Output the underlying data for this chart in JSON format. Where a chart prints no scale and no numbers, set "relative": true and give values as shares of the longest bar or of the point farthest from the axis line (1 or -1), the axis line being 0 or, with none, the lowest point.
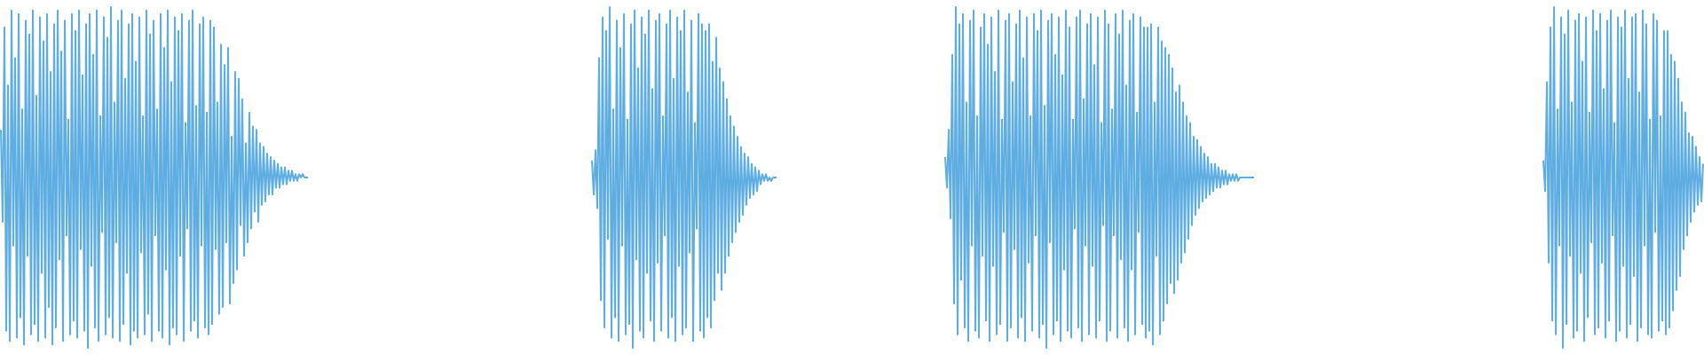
{
  "chart_data": [
    {
      "type": "line",
      "relative": true,
      "tick_labels": false,
      "color": "#5dade2",
      "categories": [
        null,
        null,
        null,
        null,
        null,
        null,
        null,
        null,
        null,
        null,
        null,
        null,
        null,
        null,
        null,
        null,
        null,
        null,
        null,
        null,
        null,
        null,
        null,
        null,
        null,
        null,
        null,
        null,
        null,
        null,
        null,
        null,
        null,
        null,
        null,
        null,
        null,
        null,
        null,
        null,
        null,
        null,
        null,
        null,
        null,
        null,
        null,
        null,
        null,
        null,
        null,
        null,
        null,
        null,
        null,
        null,
        null,
        null,
        null,
        null,
        null,
        null,
        null,
        null,
        null,
        null,
        null,
        null,
        null,
        null,
        null,
        null,
        null,
        null,
        null,
        null,
        null,
        null,
        null,
        null,
        null,
        null,
        null,
        null,
        null,
        null,
        null,
        null,
        null,
        null,
        null,
        null,
        null,
        null,
        null,
        null,
        null,
        null,
        null,
        null,
        null,
        null,
        null,
        null,
        null,
        null,
        null,
        null,
        null,
        null,
        null,
        null,
        null,
        null,
        null,
        null,
        null,
        null,
        null,
        null,
        null,
        null,
        null,
        null,
        null,
        null,
        null,
        null,
        null,
        null,
        null,
        null,
        null,
        null,
        null,
        null,
        null,
        null,
        null,
        null,
        null,
        null,
        null,
        null,
        null,
        null,
        null,
        null,
        null,
        null,
        null,
        null,
        null,
        null,
        null,
        null,
        null,
        null,
        null,
        null,
        null,
        null,
        null,
        null,
        null,
        null,
        null,
        null,
        null,
        null,
        null,
        null,
        null,
        null
      ],
      "values": [
        0.64,
        0.37,
        0.94,
        0.05,
        0.77,
        0.02,
        0.99,
        0.3,
        0.85,
        0.03,
        0.98,
        0.09,
        0.7,
        0.01,
        0.96,
        0.27,
        0.92,
        0.04,
        0.99,
        0.07,
        0.74,
        0.02,
        0.97,
        0.22,
        0.9,
        0.03,
        0.98,
        0.12,
        0.81,
        0.01,
        0.95,
        0.06,
        0.99,
        0.26,
        0.87,
        0.02,
        0.96,
        0.33,
        0.67,
        0.04,
        0.98,
        0.08,
        0.93,
        0.03,
        0.99,
        0.29,
        0.8,
        0.05,
        0.95,
        0,
        0.98,
        0.24,
        0.86,
        0.06,
        0.99,
        0.02,
        0.68,
        0.34,
        0.97,
        0.04,
        0.91,
        0.09,
        1,
        0.03,
        0.72,
        0.31,
        0.96,
        0.02,
        0.99,
        0.07,
        0.79,
        0.22,
        0.95,
        0.01,
        0.98,
        0.05,
        0.84,
        0.03,
        0.97,
        0.28,
        0.68,
        0.04,
        0.99,
        0.1,
        0.92,
        0.02,
        0.96,
        0.33,
        0.7,
        0.05,
        0.98,
        0.03,
        0.88,
        0.23,
        0.99,
        0.01,
        0.78,
        0.06,
        0.97,
        0.04,
        0.93,
        0.27,
        0.98,
        0.02,
        0.66,
        0.35,
        0.96,
        0.05,
        0.99,
        0.08,
        0.71,
        0.03,
        0.95,
        0.3,
        0.97,
        0.06,
        0.69,
        0.04,
        0.96,
        0.07,
        0.94,
        0.29,
        0.72,
        0.1,
        0.89,
        0.12,
        0.83,
        0.31,
        0.88,
        0.13,
        0.62,
        0.19,
        0.81,
        0.23,
        0.79,
        0.36,
        0.73,
        0.27,
        0.6,
        0.31,
        0.69,
        0.35,
        0.65,
        0.4,
        0.64,
        0.37,
        0.6,
        0.42,
        0.59,
        0.43,
        0.57,
        0.45,
        0.56,
        0.45,
        0.55,
        0.47,
        0.54,
        0.47,
        0.53,
        0.48,
        0.53,
        0.48,
        0.52,
        0.49,
        0.52,
        0.49,
        0.51,
        0.49,
        0.51,
        0.5,
        0.51,
        0.5,
        0.5,
        0.5
      ]
    },
    {
      "type": "line",
      "relative": true,
      "tick_labels": false,
      "color": "#5dade2",
      "categories": [
        null,
        null,
        null,
        null,
        null,
        null,
        null,
        null,
        null,
        null,
        null,
        null,
        null,
        null,
        null,
        null,
        null,
        null,
        null,
        null,
        null,
        null,
        null,
        null,
        null,
        null,
        null,
        null,
        null,
        null,
        null,
        null,
        null,
        null,
        null,
        null,
        null,
        null,
        null,
        null,
        null,
        null,
        null,
        null,
        null,
        null,
        null,
        null,
        null,
        null,
        null,
        null,
        null,
        null,
        null,
        null,
        null,
        null,
        null,
        null,
        null,
        null,
        null,
        null,
        null,
        null,
        null,
        null,
        null,
        null,
        null,
        null,
        null,
        null,
        null,
        null,
        null,
        null,
        null,
        null,
        null,
        null,
        null,
        null,
        null,
        null,
        null,
        null,
        null,
        null,
        null,
        null,
        null,
        null,
        null,
        null,
        null,
        null,
        null,
        null,
        null,
        null,
        null,
        null,
        null
      ],
      "values": [
        0.55,
        0.45,
        0.58,
        0.41,
        0.85,
        0.14,
        0.97,
        0.06,
        0.93,
        0.32,
        1,
        0.03,
        0.7,
        0.09,
        0.96,
        0.02,
        0.88,
        0.3,
        0.98,
        0.04,
        0.67,
        0.07,
        0.95,
        0,
        0.99,
        0.26,
        0.82,
        0.05,
        0.97,
        0.03,
        0.92,
        0.22,
        0.99,
        0.08,
        0.76,
        0.02,
        0.96,
        0.25,
        0.98,
        0.05,
        0.68,
        0.33,
        0.95,
        0.03,
        0.99,
        0.09,
        0.79,
        0.02,
        0.97,
        0.24,
        0.93,
        0.04,
        0.99,
        0.06,
        0.75,
        0.28,
        0.96,
        0.02,
        0.66,
        0.35,
        0.98,
        0.05,
        0.95,
        0.03,
        0.93,
        0.09,
        0.95,
        0.06,
        0.84,
        0.14,
        0.91,
        0.22,
        0.82,
        0.17,
        0.78,
        0.22,
        0.73,
        0.27,
        0.68,
        0.31,
        0.65,
        0.34,
        0.62,
        0.37,
        0.59,
        0.39,
        0.57,
        0.42,
        0.56,
        0.44,
        0.54,
        0.45,
        0.53,
        0.46,
        0.52,
        0.48,
        0.51,
        0.49,
        0.51,
        0.49,
        0.5,
        0.49,
        0.5,
        0.5,
        0.5
      ]
    },
    {
      "type": "line",
      "relative": true,
      "tick_labels": false,
      "color": "#5dade2",
      "categories": [
        null,
        null,
        null,
        null,
        null,
        null,
        null,
        null,
        null,
        null,
        null,
        null,
        null,
        null,
        null,
        null,
        null,
        null,
        null,
        null,
        null,
        null,
        null,
        null,
        null,
        null,
        null,
        null,
        null,
        null,
        null,
        null,
        null,
        null,
        null,
        null,
        null,
        null,
        null,
        null,
        null,
        null,
        null,
        null,
        null,
        null,
        null,
        null,
        null,
        null,
        null,
        null,
        null,
        null,
        null,
        null,
        null,
        null,
        null,
        null,
        null,
        null,
        null,
        null,
        null,
        null,
        null,
        null,
        null,
        null,
        null,
        null,
        null,
        null,
        null,
        null,
        null,
        null,
        null,
        null,
        null,
        null,
        null,
        null,
        null,
        null,
        null,
        null,
        null,
        null,
        null,
        null,
        null,
        null,
        null,
        null,
        null,
        null,
        null,
        null,
        null,
        null,
        null,
        null,
        null,
        null,
        null,
        null,
        null,
        null,
        null,
        null,
        null,
        null,
        null,
        null,
        null,
        null,
        null,
        null,
        null,
        null,
        null,
        null,
        null,
        null,
        null,
        null,
        null,
        null,
        null,
        null,
        null,
        null,
        null,
        null,
        null,
        null,
        null,
        null,
        null,
        null,
        null,
        null,
        null,
        null,
        null,
        null,
        null,
        null,
        null,
        null,
        null,
        null,
        null,
        null,
        null,
        null,
        null,
        null,
        null,
        null,
        null,
        null,
        null,
        null,
        null,
        null,
        null,
        null,
        null,
        null,
        null,
        null,
        null
      ],
      "values": [
        0.56,
        0.47,
        0.64,
        0.38,
        0.86,
        0.13,
        1,
        0.04,
        0.95,
        0.2,
        0.98,
        0.06,
        0.72,
        0.02,
        0.96,
        0.3,
        0.99,
        0.05,
        0.68,
        0.03,
        0.94,
        0.27,
        0.98,
        0.08,
        0.89,
        0.02,
        0.97,
        0.24,
        0.81,
        0.04,
        0.99,
        0.07,
        0.67,
        0.34,
        0.96,
        0.02,
        0.98,
        0.06,
        0.78,
        0.29,
        0.95,
        0.03,
        0.99,
        0.09,
        0.85,
        0.02,
        0.97,
        0.25,
        0.68,
        0.05,
        0.98,
        0.33,
        0.93,
        0.03,
        0.99,
        0.07,
        0.71,
        0,
        0.96,
        0.31,
        0.98,
        0.04,
        0.86,
        0.08,
        0.97,
        0.02,
        0.8,
        0.23,
        0.99,
        0.05,
        0.94,
        0.03,
        0.67,
        0.35,
        0.97,
        0.06,
        0.99,
        0.02,
        0.73,
        0.3,
        0.95,
        0.04,
        0.98,
        0.24,
        0.83,
        0.03,
        0.97,
        0.08,
        0.66,
        0.36,
        0.99,
        0.02,
        0.95,
        0.05,
        0.7,
        0.33,
        0.98,
        0.03,
        0.92,
        0.26,
        0.99,
        0.06,
        0.77,
        0.02,
        0.96,
        0.23,
        0.98,
        0.04,
        0.69,
        0.34,
        0.97,
        0.07,
        0.94,
        0.03,
        0.94,
        0.05,
        0.95,
        0.01,
        0.72,
        0.27,
        0.94,
        0.04,
        0.9,
        0.08,
        0.88,
        0.13,
        0.86,
        0.19,
        0.82,
        0.16,
        0.75,
        0.2,
        0.77,
        0.25,
        0.72,
        0.28,
        0.68,
        0.32,
        0.66,
        0.36,
        0.62,
        0.39,
        0.61,
        0.41,
        0.59,
        0.43,
        0.57,
        0.44,
        0.56,
        0.45,
        0.54,
        0.46,
        0.54,
        0.47,
        0.53,
        0.47,
        0.52,
        0.48,
        0.52,
        0.48,
        0.51,
        0.49,
        0.51,
        0.49,
        0.51,
        0.49,
        0.5,
        0.5,
        0.5,
        0.5,
        0.5,
        0.5,
        0.5,
        0.5,
        0.5
      ]
    },
    {
      "type": "line",
      "relative": true,
      "tick_labels": false,
      "color": "#5dade2",
      "categories": [
        null,
        null,
        null,
        null,
        null,
        null,
        null,
        null,
        null,
        null,
        null,
        null,
        null,
        null,
        null,
        null,
        null,
        null,
        null,
        null,
        null,
        null,
        null,
        null,
        null,
        null,
        null,
        null,
        null,
        null,
        null,
        null,
        null,
        null,
        null,
        null,
        null,
        null,
        null,
        null,
        null,
        null,
        null,
        null,
        null,
        null,
        null,
        null,
        null,
        null,
        null,
        null,
        null,
        null,
        null,
        null,
        null,
        null,
        null,
        null,
        null,
        null,
        null,
        null,
        null,
        null,
        null,
        null,
        null,
        null,
        null,
        null,
        null,
        null,
        null,
        null,
        null,
        null,
        null,
        null,
        null,
        null,
        null,
        null,
        null,
        null,
        null,
        null,
        null,
        null,
        null
      ],
      "values": [
        0.55,
        0.46,
        0.78,
        0.25,
        0.94,
        0.08,
        1,
        0.04,
        0.7,
        0.3,
        0.97,
        0,
        0.92,
        0.07,
        0.99,
        0.27,
        0.72,
        0.03,
        0.96,
        0.05,
        0.98,
        0.22,
        0.84,
        0.02,
        0.97,
        0.09,
        0.69,
        0.31,
        0.99,
        0.04,
        0.93,
        0.06,
        0.98,
        0.25,
        0.76,
        0.03,
        0.96,
        0.08,
        0.99,
        0.33,
        0.66,
        0.02,
        0.97,
        0.05,
        0.94,
        0.24,
        0.99,
        0.03,
        0.79,
        0.07,
        0.97,
        0.21,
        0.98,
        0.02,
        0.75,
        0.06,
        0.99,
        0.3,
        0.95,
        0.04,
        0.67,
        0.03,
        0.98,
        0.34,
        0.96,
        0.05,
        0.68,
        0.08,
        0.93,
        0.04,
        0.93,
        0.06,
        0.86,
        0.11,
        0.84,
        0.17,
        0.79,
        0.21,
        0.72,
        0.29,
        0.69,
        0.33,
        0.63,
        0.37,
        0.62,
        0.4,
        0.59,
        0.42,
        0.56,
        0.43,
        0.54
      ]
    }
  ]
}
